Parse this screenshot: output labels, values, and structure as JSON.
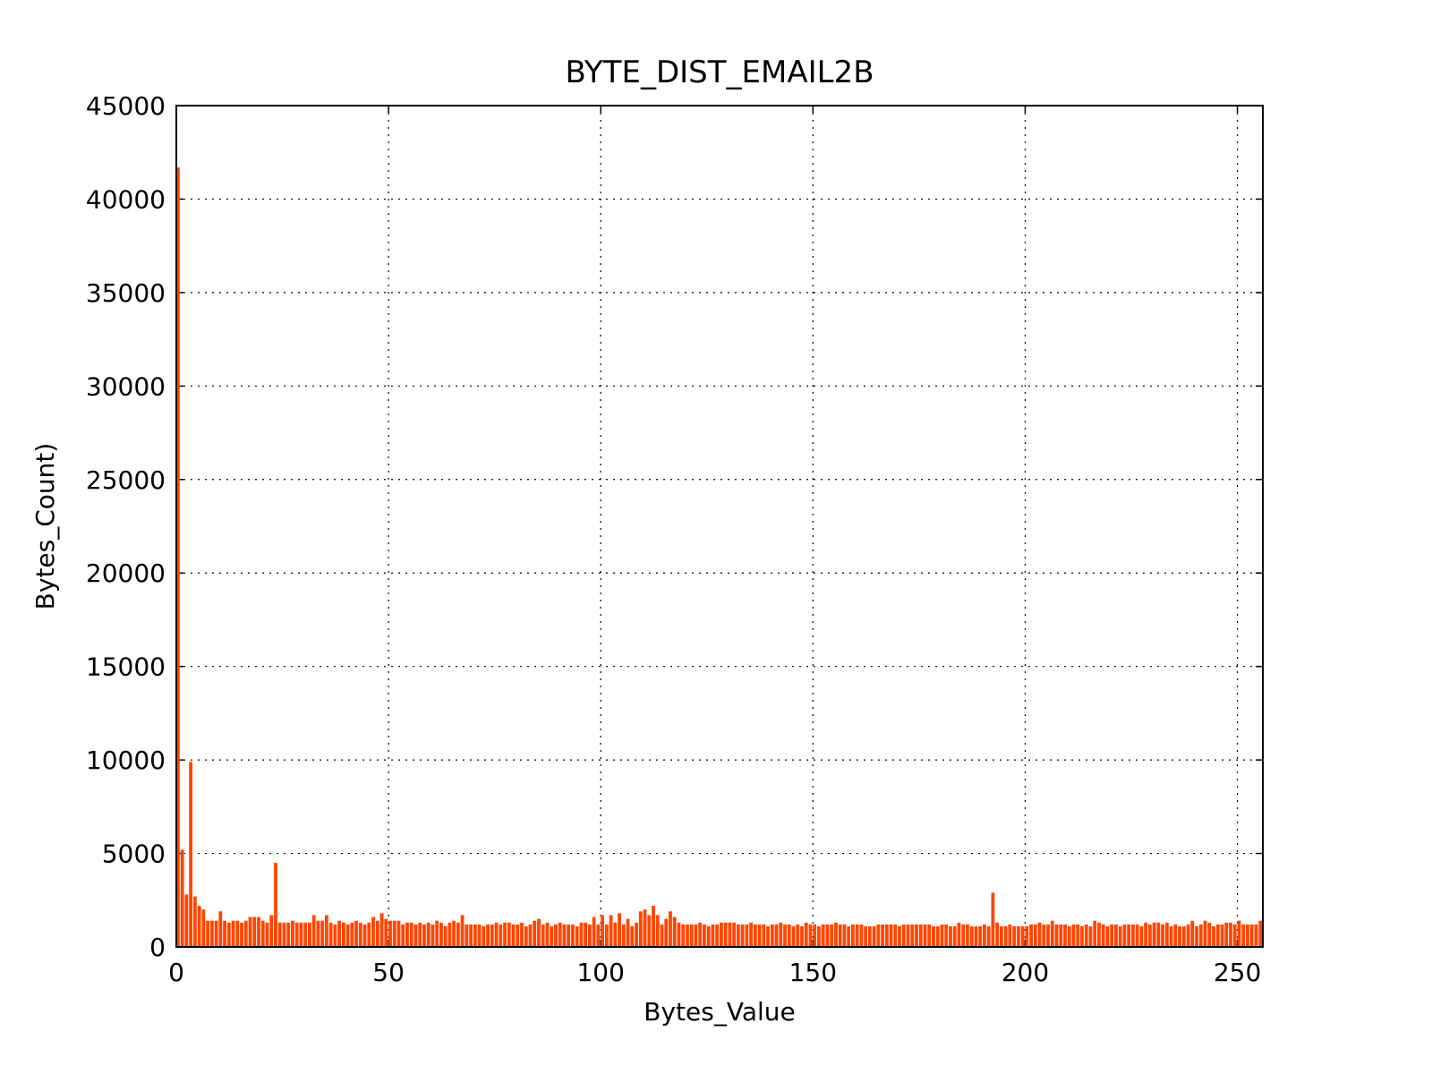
{
  "chart_data": {
    "type": "bar",
    "title": "BYTE_DIST_EMAIL2B",
    "xlabel": "Bytes_Value",
    "ylabel": "Bytes_Count)",
    "color": "#ff4500",
    "grid": true,
    "xlim": [
      0,
      256
    ],
    "xticks": [
      0,
      50,
      100,
      150,
      200,
      250
    ],
    "ylim": [
      0,
      45000
    ],
    "yticks": [
      0,
      5000,
      10000,
      15000,
      20000,
      25000,
      30000,
      35000,
      40000,
      45000
    ],
    "x": [
      0,
      1,
      2,
      3,
      4,
      5,
      6,
      7,
      8,
      9,
      10,
      11,
      12,
      13,
      14,
      15,
      16,
      17,
      18,
      19,
      20,
      21,
      22,
      23,
      24,
      25,
      26,
      27,
      28,
      29,
      30,
      31,
      32,
      33,
      34,
      35,
      36,
      37,
      38,
      39,
      40,
      41,
      42,
      43,
      44,
      45,
      46,
      47,
      48,
      49,
      50,
      51,
      52,
      53,
      54,
      55,
      56,
      57,
      58,
      59,
      60,
      61,
      62,
      63,
      64,
      65,
      66,
      67,
      68,
      69,
      70,
      71,
      72,
      73,
      74,
      75,
      76,
      77,
      78,
      79,
      80,
      81,
      82,
      83,
      84,
      85,
      86,
      87,
      88,
      89,
      90,
      91,
      92,
      93,
      94,
      95,
      96,
      97,
      98,
      99,
      100,
      101,
      102,
      103,
      104,
      105,
      106,
      107,
      108,
      109,
      110,
      111,
      112,
      113,
      114,
      115,
      116,
      117,
      118,
      119,
      120,
      121,
      122,
      123,
      124,
      125,
      126,
      127,
      128,
      129,
      130,
      131,
      132,
      133,
      134,
      135,
      136,
      137,
      138,
      139,
      140,
      141,
      142,
      143,
      144,
      145,
      146,
      147,
      148,
      149,
      150,
      151,
      152,
      153,
      154,
      155,
      156,
      157,
      158,
      159,
      160,
      161,
      162,
      163,
      164,
      165,
      166,
      167,
      168,
      169,
      170,
      171,
      172,
      173,
      174,
      175,
      176,
      177,
      178,
      179,
      180,
      181,
      182,
      183,
      184,
      185,
      186,
      187,
      188,
      189,
      190,
      191,
      192,
      193,
      194,
      195,
      196,
      197,
      198,
      199,
      200,
      201,
      202,
      203,
      204,
      205,
      206,
      207,
      208,
      209,
      210,
      211,
      212,
      213,
      214,
      215,
      216,
      217,
      218,
      219,
      220,
      221,
      222,
      223,
      224,
      225,
      226,
      227,
      228,
      229,
      230,
      231,
      232,
      233,
      234,
      235,
      236,
      237,
      238,
      239,
      240,
      241,
      242,
      243,
      244,
      245,
      246,
      247,
      248,
      249,
      250,
      251,
      252,
      253,
      254,
      255
    ],
    "values": [
      41700,
      5200,
      2800,
      9900,
      2700,
      2200,
      2000,
      1400,
      1400,
      1400,
      1900,
      1400,
      1300,
      1400,
      1400,
      1300,
      1400,
      1600,
      1600,
      1600,
      1400,
      1300,
      1700,
      4500,
      1300,
      1300,
      1300,
      1400,
      1300,
      1300,
      1300,
      1300,
      1700,
      1400,
      1400,
      1700,
      1300,
      1200,
      1400,
      1300,
      1200,
      1300,
      1400,
      1300,
      1200,
      1300,
      1600,
      1400,
      1800,
      1500,
      1400,
      1400,
      1400,
      1200,
      1300,
      1300,
      1200,
      1300,
      1200,
      1300,
      1200,
      1400,
      1300,
      1100,
      1300,
      1400,
      1300,
      1700,
      1200,
      1200,
      1200,
      1200,
      1100,
      1200,
      1200,
      1300,
      1200,
      1300,
      1300,
      1200,
      1200,
      1300,
      1100,
      1200,
      1400,
      1500,
      1200,
      1300,
      1100,
      1200,
      1300,
      1200,
      1200,
      1200,
      1100,
      1300,
      1300,
      1200,
      1600,
      1200,
      1700,
      1200,
      1700,
      1300,
      1800,
      1200,
      1500,
      1100,
      1300,
      1900,
      2000,
      1700,
      2200,
      1700,
      1200,
      1500,
      1900,
      1600,
      1300,
      1200,
      1200,
      1200,
      1200,
      1300,
      1200,
      1100,
      1200,
      1200,
      1300,
      1300,
      1300,
      1300,
      1200,
      1200,
      1200,
      1300,
      1200,
      1200,
      1200,
      1100,
      1200,
      1200,
      1300,
      1200,
      1200,
      1100,
      1200,
      1100,
      1300,
      1200,
      1200,
      1100,
      1200,
      1200,
      1200,
      1300,
      1200,
      1200,
      1100,
      1200,
      1200,
      1200,
      1100,
      1100,
      1100,
      1200,
      1200,
      1200,
      1200,
      1200,
      1100,
      1200,
      1200,
      1200,
      1200,
      1200,
      1200,
      1200,
      1100,
      1100,
      1200,
      1200,
      1100,
      1100,
      1300,
      1200,
      1200,
      1100,
      1100,
      1100,
      1200,
      1100,
      2900,
      1300,
      1100,
      1100,
      1200,
      1100,
      1100,
      1100,
      1100,
      1200,
      1200,
      1300,
      1200,
      1200,
      1400,
      1200,
      1200,
      1200,
      1100,
      1200,
      1200,
      1100,
      1200,
      1100,
      1400,
      1300,
      1200,
      1100,
      1200,
      1200,
      1100,
      1200,
      1200,
      1200,
      1200,
      1100,
      1300,
      1200,
      1300,
      1300,
      1200,
      1300,
      1100,
      1200,
      1100,
      1100,
      1200,
      1400,
      1100,
      1200,
      1400,
      1300,
      1100,
      1200,
      1200,
      1300,
      1300,
      1200,
      1400,
      1200,
      1200,
      1200,
      1200,
      1400
    ]
  }
}
